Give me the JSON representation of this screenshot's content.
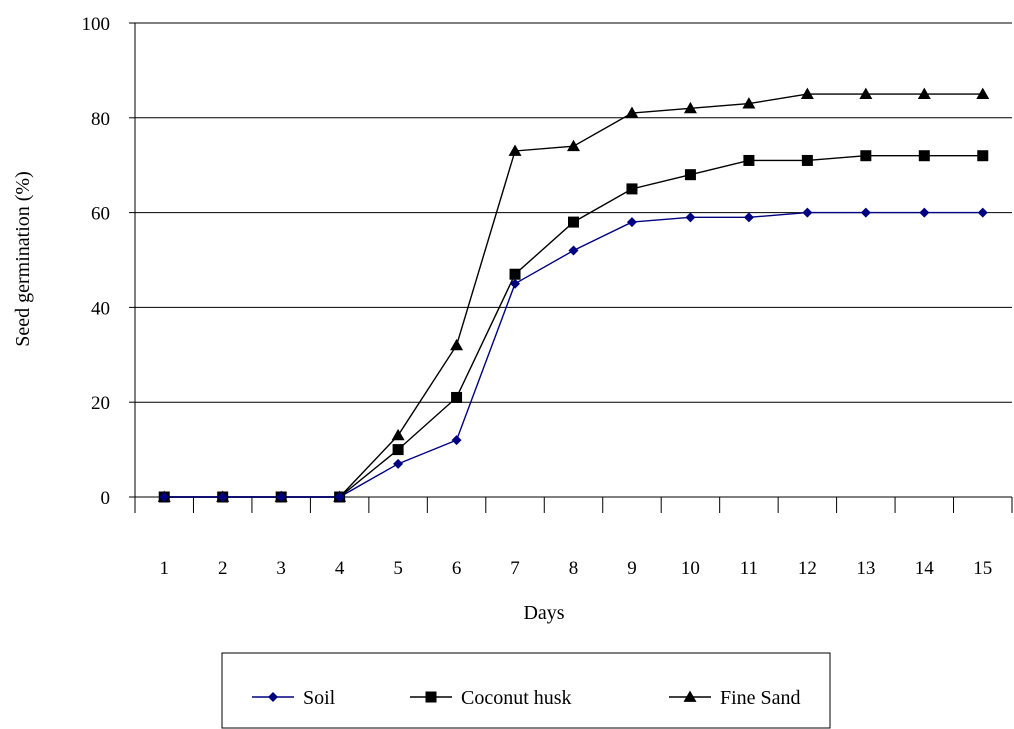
{
  "chart_data": {
    "type": "line",
    "title": "",
    "xlabel": "Days",
    "ylabel": "Seed germination (%)",
    "categories": [
      "1",
      "2",
      "3",
      "4",
      "5",
      "6",
      "7",
      "8",
      "9",
      "10",
      "11",
      "12",
      "13",
      "14",
      "15"
    ],
    "ylim": [
      0,
      100
    ],
    "yticks": [
      "0",
      "20",
      "40",
      "60",
      "80",
      "100"
    ],
    "grid": "horizontal",
    "legend_position": "bottom",
    "series": [
      {
        "name": "Soil",
        "color": "#000080",
        "marker": "diamond",
        "values": [
          0,
          0,
          0,
          0,
          7,
          12,
          45,
          52,
          58,
          59,
          59,
          60,
          60,
          60,
          60
        ]
      },
      {
        "name": "Coconut husk",
        "color": "#000000",
        "marker": "square",
        "values": [
          0,
          0,
          0,
          0,
          10,
          21,
          47,
          58,
          65,
          68,
          71,
          71,
          72,
          72,
          72
        ]
      },
      {
        "name": "Fine Sand",
        "color": "#000000",
        "marker": "triangle",
        "values": [
          0,
          0,
          0,
          0,
          13,
          32,
          73,
          74,
          81,
          82,
          83,
          85,
          85,
          85,
          85
        ]
      }
    ]
  }
}
